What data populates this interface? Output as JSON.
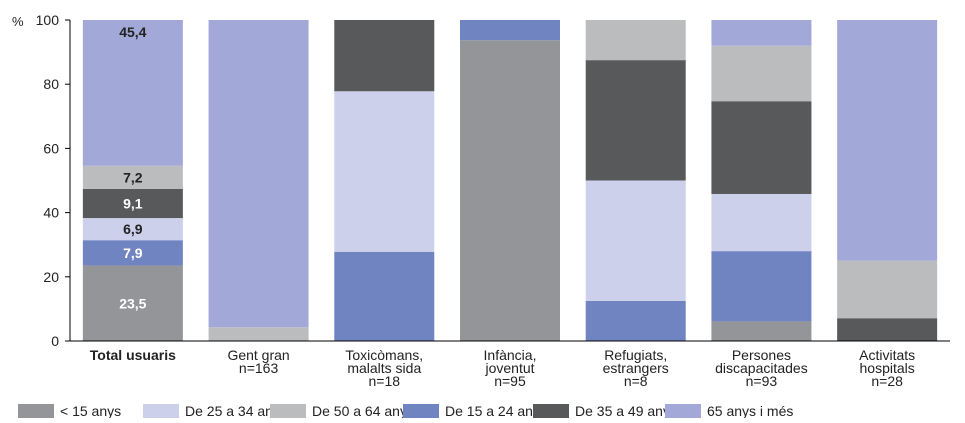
{
  "chart_data": {
    "type": "bar",
    "stacked": true,
    "percent_symbol": "%",
    "ylim": [
      0,
      100
    ],
    "yticks": [
      0,
      20,
      40,
      60,
      80,
      100
    ],
    "grid": false,
    "legend_position": "bottom",
    "categories": [
      {
        "lines": [
          "Total usuaris"
        ],
        "bold": true
      },
      {
        "lines": [
          "Gent gran",
          "n=163"
        ]
      },
      {
        "lines": [
          "Toxicòmans,",
          "malalts sida",
          "n=18"
        ]
      },
      {
        "lines": [
          "Infància,",
          "joventut",
          "n=95"
        ]
      },
      {
        "lines": [
          "Refugiats,",
          "estrangers",
          "n=8"
        ]
      },
      {
        "lines": [
          "Persones",
          "discapacitades",
          "n=93"
        ]
      },
      {
        "lines": [
          "Activitats",
          "hospitals",
          "n=28"
        ]
      }
    ],
    "series": [
      {
        "name": "< 15 anys",
        "color": "#949598",
        "values": [
          23.5,
          0,
          0,
          93.7,
          0,
          6.1,
          0
        ]
      },
      {
        "name": "De 15 a 24 anys",
        "color": "#7184c2",
        "values": [
          7.9,
          0,
          27.8,
          6.3,
          12.5,
          21.9,
          0
        ]
      },
      {
        "name": "De 25 a 34 anys",
        "color": "#ccd0ea",
        "values": [
          6.9,
          0,
          50.0,
          0,
          37.5,
          17.8,
          0
        ]
      },
      {
        "name": "De 35 a 49 anys",
        "color": "#58595b",
        "values": [
          9.1,
          0,
          22.2,
          0,
          37.5,
          28.9,
          7.1
        ]
      },
      {
        "name": "De 50 a 64 anys",
        "color": "#bbbcbe",
        "values": [
          7.2,
          4.3,
          0,
          0,
          12.5,
          17.3,
          17.9
        ]
      },
      {
        "name": "65 anys i més",
        "color": "#a2a9d8",
        "values": [
          45.4,
          95.7,
          0,
          0,
          0,
          8.0,
          75.0
        ]
      }
    ],
    "data_labels": {
      "category_index": 0,
      "labels": [
        {
          "series_index": 0,
          "text": "23,5",
          "color": "#ffffff"
        },
        {
          "series_index": 1,
          "text": "7,9",
          "color": "#ffffff"
        },
        {
          "series_index": 2,
          "text": "6,9",
          "color": "#222222"
        },
        {
          "series_index": 3,
          "text": "9,1",
          "color": "#ffffff"
        },
        {
          "series_index": 4,
          "text": "7,2",
          "color": "#222222"
        },
        {
          "series_index": 5,
          "text": "45,4",
          "color": "#222222"
        }
      ]
    },
    "legend_order": [
      0,
      2,
      4,
      1,
      3,
      5
    ]
  }
}
